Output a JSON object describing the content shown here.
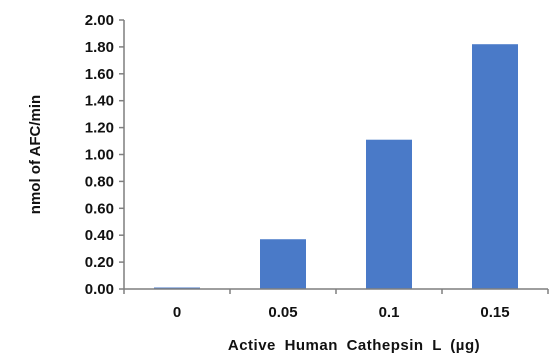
{
  "chart_data": {
    "type": "bar",
    "title": "",
    "xlabel": "Active Human Cathepsin L (µg)",
    "ylabel": "nmol of AFC/min",
    "categories": [
      "0",
      "0.05",
      "0.1",
      "0.15"
    ],
    "values": [
      0.01,
      0.37,
      1.11,
      1.82
    ],
    "ylim": [
      0,
      2.0
    ],
    "yticks": [
      "0.00",
      "0.20",
      "0.40",
      "0.60",
      "0.80",
      "1.00",
      "1.20",
      "1.40",
      "1.60",
      "1.80",
      "2.00"
    ],
    "grid": false,
    "legend": "none",
    "colors": {
      "bar": "#4a7ac8",
      "axis": "#7f7f7f",
      "text": "#111111"
    }
  }
}
